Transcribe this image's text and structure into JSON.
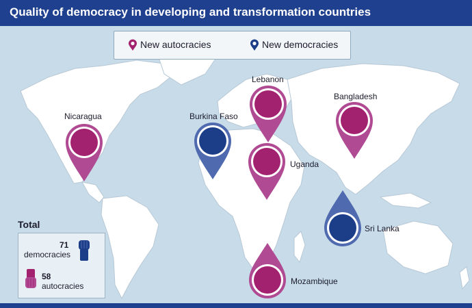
{
  "title": "Quality of democracy in developing and transformation countries",
  "legend": {
    "autocracies_label": "New autocracies",
    "democracies_label": "New democracies",
    "autocracy_color": "#a3226f",
    "democracy_color": "#1c3e88"
  },
  "pins": {
    "nicaragua": "Nicaragua",
    "burkina_faso": "Burkina Faso",
    "lebanon": "Lebanon",
    "bangladesh": "Bangladesh",
    "uganda": "Uganda",
    "sri_lanka": "Sri Lanka",
    "mozambique": "Mozambique"
  },
  "totals": {
    "title": "Total",
    "democracies_count": "71",
    "democracies_label": "democracies",
    "autocracies_count": "58",
    "autocracies_label": "autocracies"
  }
}
